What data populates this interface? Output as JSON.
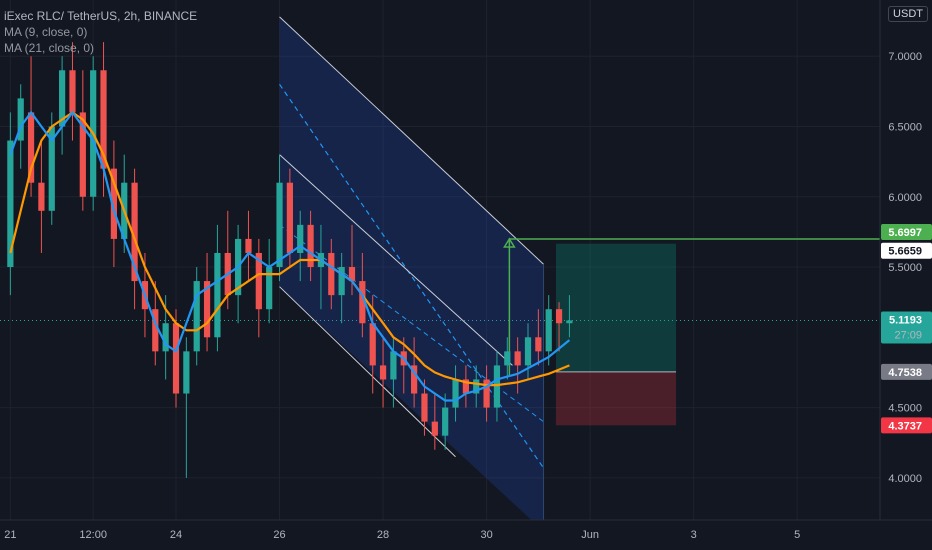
{
  "legend": {
    "symbol": "iExec RLC/ TetherUS, 2h, BINANCE",
    "ma9": "MA (9, close, 0)",
    "ma21": "MA (21, close, 0)"
  },
  "currency": "USDT",
  "colors": {
    "background": "#131722",
    "up": "#26a69a",
    "down": "#ef5350",
    "ma9": "#2196f3",
    "ma21": "#ff9800",
    "target": "#4caf50",
    "stop": "#f23645",
    "entry": "#787b86",
    "last": "#26a69a",
    "channel": "#2a4a6b"
  },
  "chart_data": {
    "type": "candlestick",
    "ylim": [
      3.7,
      7.4
    ],
    "y_ticks": [
      "7.0000",
      "6.5000",
      "6.0000",
      "5.5000",
      "4.5000",
      "4.0000"
    ],
    "y_tick_values": [
      7.0,
      6.5,
      6.0,
      5.5,
      4.5,
      4.0
    ],
    "x_ticks": [
      "21",
      "12:00",
      "24",
      "26",
      "28",
      "30",
      "Jun",
      "3",
      "5"
    ],
    "x_tick_values": [
      0,
      8,
      16,
      26,
      36,
      46,
      56,
      66,
      76
    ],
    "price_tags": [
      {
        "value": 5.6997,
        "label": "5.6997",
        "kind": "target"
      },
      {
        "value": 5.6659,
        "label": "5.6659",
        "kind": "target-white"
      },
      {
        "value": 5.1193,
        "label": "5.1193",
        "kind": "last",
        "sub": "27:09"
      },
      {
        "value": 4.7538,
        "label": "4.7538",
        "kind": "entry"
      },
      {
        "value": 4.3737,
        "label": "4.3737",
        "kind": "stop"
      }
    ],
    "position": {
      "x_start": 52.7,
      "x_end": 64.3,
      "entry": 4.7538,
      "target": 5.6659,
      "stop": 4.3737
    },
    "candles": [
      [
        5.5,
        6.6,
        5.3,
        6.4
      ],
      [
        6.4,
        6.8,
        6.2,
        6.7
      ],
      [
        6.6,
        7.0,
        6.0,
        6.1
      ],
      [
        6.1,
        6.4,
        5.6,
        5.9
      ],
      [
        5.9,
        6.6,
        5.8,
        6.5
      ],
      [
        6.5,
        7.0,
        6.3,
        6.9
      ],
      [
        6.9,
        7.1,
        6.4,
        6.6
      ],
      [
        6.6,
        6.9,
        5.9,
        6.0
      ],
      [
        6.0,
        7.0,
        5.9,
        6.9
      ],
      [
        6.9,
        7.1,
        6.0,
        6.2
      ],
      [
        6.2,
        6.4,
        5.5,
        5.7
      ],
      [
        5.7,
        6.3,
        5.6,
        6.1
      ],
      [
        6.1,
        6.2,
        5.2,
        5.4
      ],
      [
        5.4,
        5.6,
        5.0,
        5.2
      ],
      [
        5.2,
        5.4,
        4.8,
        4.9
      ],
      [
        4.9,
        5.3,
        4.7,
        5.1
      ],
      [
        5.1,
        5.2,
        4.5,
        4.6
      ],
      [
        4.6,
        5.0,
        4.0,
        4.9
      ],
      [
        4.9,
        5.5,
        4.8,
        5.4
      ],
      [
        5.4,
        5.6,
        4.9,
        5.0
      ],
      [
        5.0,
        5.8,
        4.9,
        5.6
      ],
      [
        5.6,
        5.9,
        5.2,
        5.3
      ],
      [
        5.3,
        5.8,
        5.1,
        5.7
      ],
      [
        5.7,
        5.9,
        5.4,
        5.6
      ],
      [
        5.6,
        5.7,
        5.0,
        5.2
      ],
      [
        5.2,
        5.7,
        5.1,
        5.5
      ],
      [
        5.5,
        6.3,
        5.4,
        6.1
      ],
      [
        6.1,
        6.2,
        5.5,
        5.6
      ],
      [
        5.6,
        5.9,
        5.4,
        5.8
      ],
      [
        5.8,
        5.9,
        5.4,
        5.5
      ],
      [
        5.5,
        5.8,
        5.2,
        5.6
      ],
      [
        5.6,
        5.7,
        5.2,
        5.3
      ],
      [
        5.3,
        5.6,
        5.1,
        5.5
      ],
      [
        5.5,
        5.8,
        5.3,
        5.4
      ],
      [
        5.4,
        5.6,
        5.0,
        5.1
      ],
      [
        5.1,
        5.3,
        4.6,
        4.8
      ],
      [
        4.8,
        5.0,
        4.5,
        4.7
      ],
      [
        4.7,
        5.0,
        4.5,
        4.9
      ],
      [
        4.9,
        5.0,
        4.6,
        4.8
      ],
      [
        4.8,
        5.0,
        4.5,
        4.6
      ],
      [
        4.6,
        4.7,
        4.3,
        4.4
      ],
      [
        4.4,
        4.6,
        4.2,
        4.3
      ],
      [
        4.3,
        4.6,
        4.2,
        4.5
      ],
      [
        4.5,
        4.8,
        4.4,
        4.7
      ],
      [
        4.7,
        4.8,
        4.5,
        4.6
      ],
      [
        4.6,
        4.8,
        4.5,
        4.7
      ],
      [
        4.7,
        4.8,
        4.4,
        4.5
      ],
      [
        4.5,
        4.9,
        4.4,
        4.8
      ],
      [
        4.8,
        5.0,
        4.7,
        4.9
      ],
      [
        4.9,
        5.0,
        4.6,
        4.8
      ],
      [
        4.8,
        5.1,
        4.7,
        5.0
      ],
      [
        5.0,
        5.2,
        4.8,
        4.9
      ],
      [
        4.9,
        5.3,
        4.8,
        5.2
      ],
      [
        5.2,
        5.25,
        4.9,
        5.1
      ],
      [
        5.1,
        5.3,
        5.0,
        5.12
      ]
    ],
    "ma9": [
      6.3,
      6.5,
      6.6,
      6.5,
      6.4,
      6.5,
      6.6,
      6.5,
      6.4,
      6.2,
      5.9,
      5.7,
      5.5,
      5.3,
      5.1,
      4.95,
      4.9,
      5.1,
      5.3,
      5.35,
      5.4,
      5.45,
      5.5,
      5.6,
      5.55,
      5.5,
      5.55,
      5.6,
      5.65,
      5.6,
      5.55,
      5.5,
      5.45,
      5.4,
      5.3,
      5.1,
      5.0,
      4.9,
      4.85,
      4.75,
      4.65,
      4.6,
      4.55,
      4.55,
      4.6,
      4.62,
      4.65,
      4.7,
      4.72,
      4.74,
      4.78,
      4.82,
      4.86,
      4.92,
      4.98
    ],
    "ma21": [
      5.6,
      5.9,
      6.2,
      6.4,
      6.5,
      6.55,
      6.6,
      6.55,
      6.45,
      6.3,
      6.1,
      5.9,
      5.7,
      5.5,
      5.35,
      5.2,
      5.1,
      5.05,
      5.05,
      5.1,
      5.2,
      5.3,
      5.35,
      5.4,
      5.45,
      5.45,
      5.45,
      5.5,
      5.55,
      5.55,
      5.55,
      5.5,
      5.45,
      5.4,
      5.3,
      5.2,
      5.1,
      5.0,
      4.95,
      4.88,
      4.8,
      4.75,
      4.72,
      4.7,
      4.68,
      4.67,
      4.66,
      4.66,
      4.67,
      4.68,
      4.7,
      4.72,
      4.74,
      4.77,
      4.8
    ]
  }
}
